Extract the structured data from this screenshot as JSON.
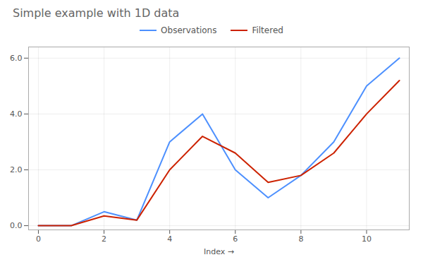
{
  "chart_data": {
    "type": "line",
    "title": "Simple example with 1D data",
    "xlabel": "Index",
    "x": [
      0,
      1,
      2,
      3,
      4,
      5,
      6,
      7,
      8,
      9,
      10,
      11
    ],
    "series": [
      {
        "name": "Observations",
        "color": "#4d90fe",
        "values": [
          0,
          0,
          0.5,
          0.2,
          3.0,
          4.0,
          2.0,
          1.0,
          1.8,
          3.0,
          5.0,
          6.0
        ]
      },
      {
        "name": "Filtered",
        "color": "#cc2200",
        "values": [
          0,
          0,
          0.35,
          0.2,
          2.0,
          3.2,
          2.6,
          1.55,
          1.8,
          2.6,
          4.0,
          5.2
        ]
      }
    ],
    "xlim": [
      -0.3,
      11.3
    ],
    "ylim": [
      -0.15,
      6.4
    ],
    "xticks": [
      0,
      2,
      4,
      6,
      8,
      10
    ],
    "yticks": [
      0,
      2,
      4,
      6
    ],
    "grid": true,
    "legend": "top"
  }
}
